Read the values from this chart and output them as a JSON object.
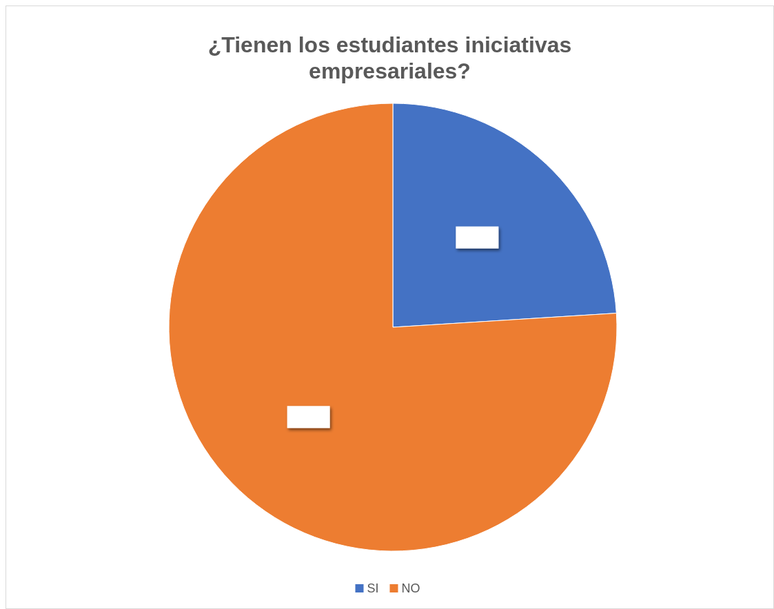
{
  "chart_data": {
    "type": "pie",
    "title": "¿Tienen los estudiantes iniciativas empresariales?",
    "categories": [
      "SI",
      "NO"
    ],
    "values": [
      24,
      76
    ],
    "colors": [
      "#4472c4",
      "#ed7d31"
    ],
    "legend": "bottom"
  }
}
